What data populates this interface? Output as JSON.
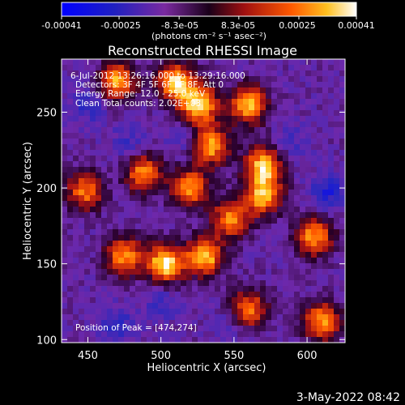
{
  "chart_data": {
    "type": "heatmap",
    "title": "Reconstructed RHESSI Image",
    "xlabel": "Heliocentric X (arcsec)",
    "ylabel": "Heliocentric Y (arcsec)",
    "xlim": [
      432,
      626
    ],
    "ylim": [
      98,
      285
    ],
    "xticks": [
      450,
      500,
      550,
      600
    ],
    "yticks": [
      100,
      150,
      200,
      250
    ],
    "colorbar": {
      "range": [
        -0.00041,
        0.00041
      ],
      "tick_labels": [
        "-0.00041",
        "-0.00025",
        "-8.3e-05",
        "8.3e-05",
        "0.00025",
        "0.00041"
      ],
      "unit_label": "(photons cm⁻² s⁻¹ asec⁻²)"
    },
    "info_lines": [
      "6-Jul-2012 13:26:16.000 to 13:29:16.000",
      "Detectors: 3F 4F 5F 6F 7F 8F, Att 0",
      "Energy Range: 12.0 - 25.0 keV",
      "Clean    Total counts: 2.02E+03"
    ],
    "peak_label": "Position of Peak = [474,274]",
    "peak_position": [
      474,
      274
    ],
    "bright_regions": [
      {
        "x": 510,
        "y": 270,
        "level": 0.85
      },
      {
        "x": 526,
        "y": 255,
        "level": 0.95
      },
      {
        "x": 560,
        "y": 255,
        "level": 0.8
      },
      {
        "x": 534,
        "y": 228,
        "level": 0.75
      },
      {
        "x": 570,
        "y": 215,
        "level": 0.8
      },
      {
        "x": 488,
        "y": 210,
        "level": 0.7
      },
      {
        "x": 520,
        "y": 200,
        "level": 0.7
      },
      {
        "x": 570,
        "y": 195,
        "level": 0.75
      },
      {
        "x": 548,
        "y": 180,
        "level": 0.65
      },
      {
        "x": 503,
        "y": 150,
        "level": 0.95
      },
      {
        "x": 530,
        "y": 155,
        "level": 0.85
      },
      {
        "x": 475,
        "y": 155,
        "level": 0.7
      },
      {
        "x": 605,
        "y": 168,
        "level": 0.7
      },
      {
        "x": 448,
        "y": 198,
        "level": 0.6
      },
      {
        "x": 610,
        "y": 112,
        "level": 0.7
      },
      {
        "x": 560,
        "y": 120,
        "level": 0.6
      },
      {
        "x": 470,
        "y": 270,
        "level": 0.75
      }
    ],
    "dark_regions": [
      {
        "x": 450,
        "y": 255,
        "level": -0.6
      },
      {
        "x": 478,
        "y": 228,
        "level": -0.55
      },
      {
        "x": 515,
        "y": 232,
        "level": -0.5
      },
      {
        "x": 615,
        "y": 197,
        "level": -0.7
      },
      {
        "x": 470,
        "y": 110,
        "level": -0.6
      },
      {
        "x": 548,
        "y": 110,
        "level": -0.5
      },
      {
        "x": 500,
        "y": 125,
        "level": -0.55
      },
      {
        "x": 590,
        "y": 230,
        "level": -0.5
      }
    ]
  },
  "footer": {
    "date": "3-May-2022 08:42"
  },
  "colors": {
    "background": "#000000",
    "text": "#ffffff"
  }
}
